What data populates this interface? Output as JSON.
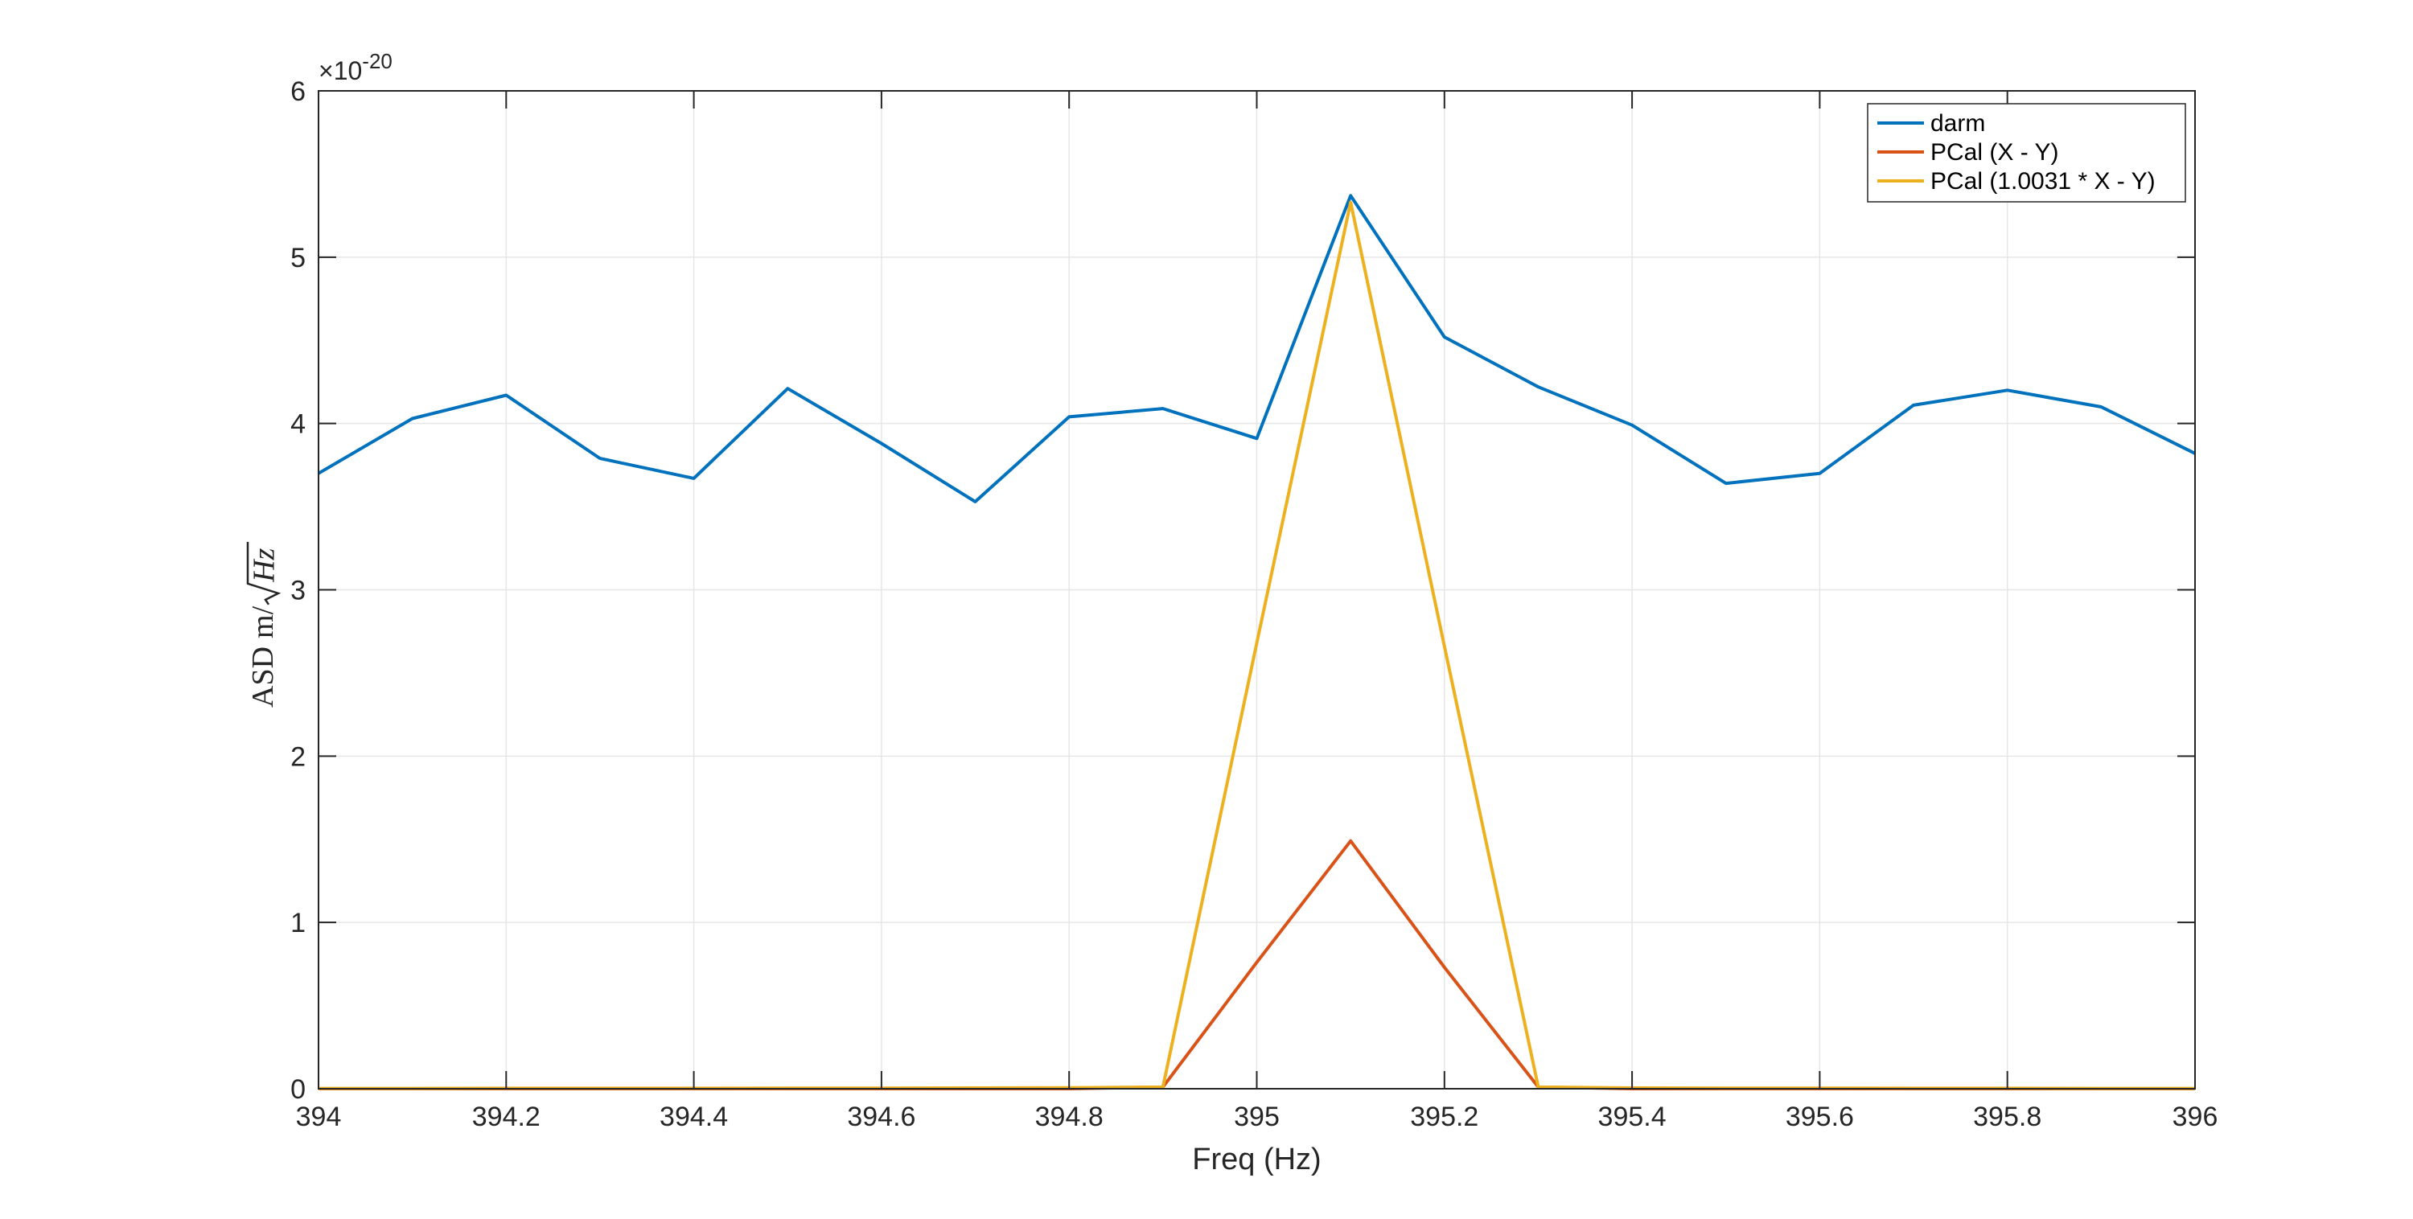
{
  "chart_data": {
    "type": "line",
    "title": "",
    "xlabel": "Freq (Hz)",
    "ylabel": {
      "prefix": "ASD",
      "unit": "m/",
      "radicand": "Hz"
    },
    "xlim": [
      394,
      396
    ],
    "ylim": [
      0,
      6
    ],
    "y_multiplier": "×10",
    "y_exponent": "-20",
    "grid": true,
    "legend_position": "top-right",
    "x_ticks": [
      394,
      394.2,
      394.4,
      394.6,
      394.8,
      395,
      395.2,
      395.4,
      395.6,
      395.8,
      396
    ],
    "x_tick_labels": [
      "394",
      "394.2",
      "394.4",
      "394.6",
      "394.8",
      "395",
      "395.2",
      "395.4",
      "395.6",
      "395.8",
      "396"
    ],
    "y_ticks": [
      0,
      1,
      2,
      3,
      4,
      5,
      6
    ],
    "y_tick_labels": [
      "0",
      "1",
      "2",
      "3",
      "4",
      "5",
      "6"
    ],
    "x": [
      394.0,
      394.1,
      394.2,
      394.3,
      394.4,
      394.5,
      394.6,
      394.7,
      394.8,
      394.9,
      395.0,
      395.1,
      395.2,
      395.3,
      395.4,
      395.5,
      395.6,
      395.7,
      395.8,
      395.9,
      396.0
    ],
    "series": [
      {
        "name": "darm",
        "color": "#0072BD",
        "values": [
          3.7,
          4.03,
          4.17,
          3.79,
          3.67,
          4.21,
          3.88,
          3.53,
          4.04,
          4.09,
          3.91,
          5.37,
          4.52,
          4.22,
          3.99,
          3.64,
          3.7,
          4.11,
          4.2,
          4.1,
          3.82
        ]
      },
      {
        "name": "PCal (X - Y)",
        "color": "#D95319",
        "values": [
          0,
          0,
          0,
          0,
          0,
          0,
          0,
          0,
          0,
          0.01,
          0.76,
          1.49,
          0.73,
          0.01,
          0,
          0,
          0,
          0,
          0,
          0,
          0
        ]
      },
      {
        "name": "PCal (1.0031 * X - Y)",
        "color": "#EDB120",
        "values": [
          0.002,
          0.002,
          0.003,
          0.003,
          0.003,
          0.004,
          0.004,
          0.005,
          0.006,
          0.01,
          2.68,
          5.33,
          2.66,
          0.01,
          0.005,
          0.004,
          0.004,
          0.003,
          0.003,
          0.002,
          0.002
        ]
      }
    ]
  }
}
